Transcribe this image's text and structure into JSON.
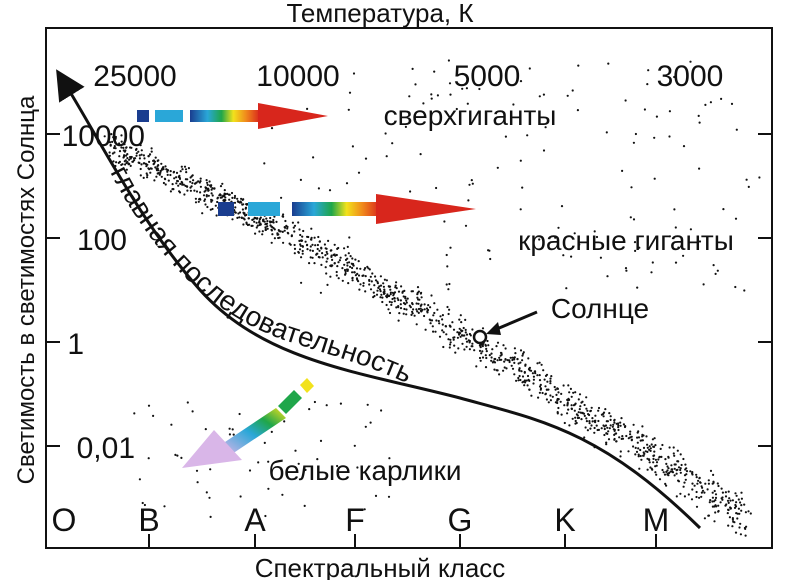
{
  "diagram": {
    "top_axis_title": "Температура, К",
    "bottom_axis_title": "Спектральный класс",
    "left_axis_title": "Светимость в светимостях Солнца",
    "temperature_ticks": [
      "25000",
      "10000",
      "5000",
      "3000"
    ],
    "luminosity_ticks": [
      "10000",
      "100",
      "1",
      "0,01"
    ],
    "spectral_classes": [
      "O",
      "B",
      "A",
      "F",
      "G",
      "K",
      "M"
    ],
    "region_labels": {
      "supergiants": "сверхгиганты",
      "red_giants": "красные гиганты",
      "main_sequence": "главная последовательность",
      "white_dwarfs": "белые карлики",
      "sun": "Солнце"
    },
    "colors": {
      "hot_star": "#1a3d8f",
      "medium_star": "#1fa64a",
      "yellow_star": "#f2e21c",
      "cool_star": "#d8261c",
      "white_dwarf": "#d9b6e8",
      "ink": "#111111"
    }
  }
}
